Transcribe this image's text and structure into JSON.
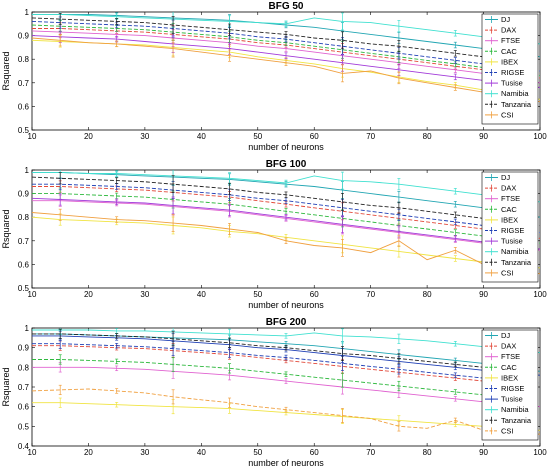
{
  "chart_data": [
    {
      "type": "line",
      "title": "BFG 50",
      "xlabel": "number of neurons",
      "ylabel": "Rsquared",
      "xlim": [
        10,
        100
      ],
      "ylim": [
        0.5,
        1
      ],
      "x_ticks": [
        "10",
        "20",
        "30",
        "40",
        "50",
        "60",
        "70",
        "80",
        "90",
        "100"
      ],
      "y_ticks": [
        "0.5",
        "0.6",
        "0.7",
        "0.8",
        "0.9",
        "1"
      ],
      "legend_position": "right",
      "x": [
        10,
        15,
        20,
        25,
        30,
        35,
        40,
        45,
        50,
        55,
        60,
        65,
        70,
        75,
        80,
        85,
        90,
        95,
        100
      ],
      "series": [
        {
          "name": "DJ",
          "color": "#22a6b3",
          "dash": "solid",
          "values": [
            0.99,
            0.99,
            0.99,
            0.985,
            0.98,
            0.975,
            0.97,
            0.965,
            0.955,
            0.945,
            0.935,
            0.92,
            0.905,
            0.89,
            0.875,
            0.86,
            0.845,
            0.83,
            0.81
          ]
        },
        {
          "name": "DAX",
          "color": "#e2493a",
          "dash": "dash",
          "values": [
            0.93,
            0.93,
            0.925,
            0.92,
            0.915,
            0.905,
            0.895,
            0.885,
            0.87,
            0.86,
            0.845,
            0.83,
            0.815,
            0.8,
            0.785,
            0.77,
            0.755,
            0.74,
            0.72
          ]
        },
        {
          "name": "FTSE",
          "color": "#e062d0",
          "dash": "solid",
          "values": [
            0.92,
            0.915,
            0.91,
            0.905,
            0.9,
            0.89,
            0.88,
            0.87,
            0.855,
            0.845,
            0.83,
            0.815,
            0.8,
            0.785,
            0.77,
            0.755,
            0.74,
            0.725,
            0.7
          ]
        },
        {
          "name": "CAC",
          "color": "#2db83d",
          "dash": "dash",
          "values": [
            0.945,
            0.94,
            0.935,
            0.93,
            0.925,
            0.915,
            0.905,
            0.895,
            0.88,
            0.87,
            0.855,
            0.84,
            0.825,
            0.81,
            0.795,
            0.78,
            0.765,
            0.75,
            0.73
          ]
        },
        {
          "name": "IBEX",
          "color": "#f0e442",
          "dash": "solid",
          "values": [
            0.88,
            0.875,
            0.87,
            0.865,
            0.86,
            0.85,
            0.84,
            0.83,
            0.81,
            0.795,
            0.78,
            0.76,
            0.745,
            0.725,
            0.705,
            0.69,
            0.67,
            0.65,
            0.63
          ]
        },
        {
          "name": "RIGSE",
          "color": "#1f3fb5",
          "dash": "dash",
          "values": [
            0.96,
            0.955,
            0.95,
            0.945,
            0.94,
            0.93,
            0.92,
            0.91,
            0.895,
            0.885,
            0.87,
            0.855,
            0.84,
            0.825,
            0.81,
            0.795,
            0.78,
            0.765,
            0.75
          ]
        },
        {
          "name": "Tusise",
          "color": "#a23bd9",
          "dash": "solid",
          "values": [
            0.9,
            0.895,
            0.89,
            0.885,
            0.875,
            0.865,
            0.855,
            0.845,
            0.83,
            0.815,
            0.8,
            0.785,
            0.77,
            0.755,
            0.74,
            0.725,
            0.71,
            0.695,
            0.68
          ]
        },
        {
          "name": "Namibia",
          "color": "#40e0d0",
          "dash": "solid",
          "values": [
            0.99,
            0.99,
            0.985,
            0.98,
            0.975,
            0.97,
            0.965,
            0.96,
            0.955,
            0.95,
            0.975,
            0.96,
            0.955,
            0.94,
            0.925,
            0.91,
            0.895,
            0.88,
            0.865
          ]
        },
        {
          "name": "Tanzania",
          "color": "#222222",
          "dash": "dash",
          "values": [
            0.975,
            0.97,
            0.965,
            0.96,
            0.955,
            0.945,
            0.935,
            0.925,
            0.915,
            0.905,
            0.89,
            0.88,
            0.865,
            0.855,
            0.84,
            0.825,
            0.81,
            0.795,
            0.78
          ]
        },
        {
          "name": "CSI",
          "color": "#f0a040",
          "dash": "solid",
          "values": [
            0.89,
            0.88,
            0.87,
            0.865,
            0.855,
            0.845,
            0.83,
            0.815,
            0.8,
            0.785,
            0.77,
            0.74,
            0.75,
            0.72,
            0.7,
            0.68,
            0.66,
            0.64,
            0.62
          ]
        }
      ]
    },
    {
      "type": "line",
      "title": "BFG 100",
      "xlabel": "number of neurons",
      "ylabel": "Rsquared",
      "xlim": [
        10,
        100
      ],
      "ylim": [
        0.5,
        1
      ],
      "x_ticks": [
        "10",
        "20",
        "30",
        "40",
        "50",
        "60",
        "70",
        "80",
        "90",
        "100"
      ],
      "y_ticks": [
        "0.5",
        "0.6",
        "0.7",
        "0.8",
        "0.9",
        "1"
      ],
      "legend_position": "right",
      "x": [
        10,
        15,
        20,
        25,
        30,
        35,
        40,
        45,
        50,
        55,
        60,
        65,
        70,
        75,
        80,
        85,
        90,
        95,
        100
      ],
      "series": [
        {
          "name": "DJ",
          "color": "#22a6b3",
          "dash": "solid",
          "values": [
            0.99,
            0.99,
            0.985,
            0.98,
            0.975,
            0.97,
            0.965,
            0.96,
            0.95,
            0.94,
            0.93,
            0.915,
            0.9,
            0.885,
            0.87,
            0.855,
            0.84,
            0.82,
            0.8
          ]
        },
        {
          "name": "DAX",
          "color": "#e2493a",
          "dash": "dash",
          "values": [
            0.93,
            0.93,
            0.925,
            0.92,
            0.915,
            0.905,
            0.895,
            0.885,
            0.87,
            0.855,
            0.84,
            0.825,
            0.81,
            0.795,
            0.78,
            0.765,
            0.75,
            0.73,
            0.71
          ]
        },
        {
          "name": "FTSE",
          "color": "#e062d0",
          "dash": "solid",
          "values": [
            0.87,
            0.87,
            0.865,
            0.86,
            0.855,
            0.845,
            0.835,
            0.825,
            0.81,
            0.795,
            0.78,
            0.765,
            0.75,
            0.735,
            0.72,
            0.705,
            0.69,
            0.675,
            0.66
          ]
        },
        {
          "name": "CAC",
          "color": "#2db83d",
          "dash": "dash",
          "values": [
            0.9,
            0.9,
            0.895,
            0.89,
            0.885,
            0.875,
            0.865,
            0.855,
            0.84,
            0.825,
            0.81,
            0.795,
            0.78,
            0.765,
            0.75,
            0.735,
            0.72,
            0.705,
            0.69
          ]
        },
        {
          "name": "IBEX",
          "color": "#f0e442",
          "dash": "solid",
          "values": [
            0.8,
            0.79,
            0.785,
            0.78,
            0.775,
            0.765,
            0.755,
            0.74,
            0.73,
            0.715,
            0.7,
            0.685,
            0.67,
            0.655,
            0.64,
            0.625,
            0.61,
            0.6,
            0.585
          ]
        },
        {
          "name": "RIGSE",
          "color": "#1f3fb5",
          "dash": "dash",
          "values": [
            0.94,
            0.94,
            0.935,
            0.93,
            0.925,
            0.915,
            0.905,
            0.895,
            0.88,
            0.87,
            0.855,
            0.84,
            0.825,
            0.81,
            0.795,
            0.78,
            0.765,
            0.75,
            0.735
          ]
        },
        {
          "name": "Tusise",
          "color": "#a23bd9",
          "dash": "solid",
          "values": [
            0.88,
            0.875,
            0.87,
            0.865,
            0.86,
            0.85,
            0.84,
            0.83,
            0.815,
            0.8,
            0.785,
            0.77,
            0.755,
            0.74,
            0.725,
            0.71,
            0.695,
            0.68,
            0.665
          ]
        },
        {
          "name": "Namibia",
          "color": "#40e0d0",
          "dash": "solid",
          "values": [
            0.99,
            0.99,
            0.985,
            0.985,
            0.98,
            0.975,
            0.97,
            0.965,
            0.955,
            0.945,
            0.975,
            0.955,
            0.95,
            0.94,
            0.925,
            0.91,
            0.895,
            0.88,
            0.865
          ]
        },
        {
          "name": "Tanzania",
          "color": "#222222",
          "dash": "dash",
          "values": [
            0.97,
            0.965,
            0.96,
            0.955,
            0.95,
            0.94,
            0.93,
            0.92,
            0.905,
            0.895,
            0.88,
            0.865,
            0.85,
            0.84,
            0.825,
            0.81,
            0.795,
            0.78,
            0.765
          ]
        },
        {
          "name": "CSI",
          "color": "#f0a040",
          "dash": "solid",
          "values": [
            0.82,
            0.81,
            0.8,
            0.79,
            0.785,
            0.775,
            0.765,
            0.75,
            0.735,
            0.7,
            0.68,
            0.67,
            0.65,
            0.7,
            0.62,
            0.66,
            0.6,
            0.59,
            0.56
          ]
        }
      ]
    },
    {
      "type": "line",
      "title": "BFG 200",
      "xlabel": "number of neurons",
      "ylabel": "Rsquared",
      "xlim": [
        10,
        100
      ],
      "ylim": [
        0.4,
        1
      ],
      "x_ticks": [
        "10",
        "20",
        "30",
        "40",
        "50",
        "60",
        "70",
        "80",
        "90",
        "100"
      ],
      "y_ticks": [
        "0.4",
        "0.5",
        "0.6",
        "0.7",
        "0.8",
        "0.9",
        "1"
      ],
      "legend_position": "right",
      "x": [
        10,
        15,
        20,
        25,
        30,
        35,
        40,
        45,
        50,
        55,
        60,
        65,
        70,
        75,
        80,
        85,
        90,
        95,
        100
      ],
      "series": [
        {
          "name": "DJ",
          "color": "#22a6b3",
          "dash": "solid",
          "values": [
            0.97,
            0.97,
            0.965,
            0.96,
            0.955,
            0.95,
            0.945,
            0.94,
            0.93,
            0.92,
            0.91,
            0.895,
            0.88,
            0.865,
            0.85,
            0.835,
            0.82,
            0.8,
            0.78
          ]
        },
        {
          "name": "DAX",
          "color": "#e2493a",
          "dash": "dash",
          "values": [
            0.91,
            0.91,
            0.905,
            0.9,
            0.895,
            0.885,
            0.875,
            0.865,
            0.85,
            0.835,
            0.82,
            0.805,
            0.79,
            0.775,
            0.76,
            0.745,
            0.73,
            0.715,
            0.7
          ]
        },
        {
          "name": "FTSE",
          "color": "#e062d0",
          "dash": "solid",
          "values": [
            0.8,
            0.8,
            0.8,
            0.795,
            0.79,
            0.78,
            0.77,
            0.76,
            0.745,
            0.73,
            0.715,
            0.7,
            0.685,
            0.67,
            0.655,
            0.64,
            0.625,
            0.61,
            0.6
          ]
        },
        {
          "name": "CAC",
          "color": "#2db83d",
          "dash": "dash",
          "values": [
            0.84,
            0.84,
            0.835,
            0.83,
            0.825,
            0.815,
            0.805,
            0.795,
            0.78,
            0.765,
            0.75,
            0.735,
            0.72,
            0.705,
            0.69,
            0.675,
            0.66,
            0.645,
            0.63
          ]
        },
        {
          "name": "IBEX",
          "color": "#f0e442",
          "dash": "solid",
          "values": [
            0.62,
            0.62,
            0.615,
            0.61,
            0.605,
            0.6,
            0.595,
            0.59,
            0.58,
            0.57,
            0.56,
            0.55,
            0.54,
            0.53,
            0.52,
            0.51,
            0.5,
            0.49,
            0.48
          ]
        },
        {
          "name": "RIGSE",
          "color": "#1f3fb5",
          "dash": "dash",
          "values": [
            0.92,
            0.92,
            0.915,
            0.91,
            0.905,
            0.895,
            0.885,
            0.875,
            0.86,
            0.85,
            0.835,
            0.82,
            0.805,
            0.79,
            0.775,
            0.76,
            0.745,
            0.73,
            0.72
          ]
        },
        {
          "name": "Tusise",
          "color": "#1f3fb5",
          "dash": "solid",
          "values": [
            0.96,
            0.96,
            0.955,
            0.95,
            0.945,
            0.935,
            0.925,
            0.915,
            0.9,
            0.89,
            0.875,
            0.86,
            0.845,
            0.83,
            0.815,
            0.8,
            0.785,
            0.77,
            0.76
          ]
        },
        {
          "name": "Namibia",
          "color": "#40e0d0",
          "dash": "solid",
          "values": [
            0.99,
            0.99,
            0.99,
            0.985,
            0.985,
            0.98,
            0.975,
            0.97,
            0.965,
            0.96,
            0.975,
            0.96,
            0.955,
            0.945,
            0.935,
            0.92,
            0.905,
            0.89,
            0.875
          ]
        },
        {
          "name": "Tanzania",
          "color": "#222222",
          "dash": "dash",
          "values": [
            0.97,
            0.97,
            0.965,
            0.96,
            0.955,
            0.945,
            0.935,
            0.925,
            0.91,
            0.9,
            0.885,
            0.87,
            0.86,
            0.845,
            0.83,
            0.815,
            0.8,
            0.785,
            0.77
          ]
        },
        {
          "name": "CSI",
          "color": "#f0a040",
          "dash": "dash",
          "values": [
            0.68,
            0.685,
            0.69,
            0.68,
            0.67,
            0.65,
            0.635,
            0.62,
            0.6,
            0.585,
            0.57,
            0.555,
            0.54,
            0.5,
            0.49,
            0.53,
            0.48,
            0.47,
            0.46
          ]
        }
      ]
    }
  ]
}
